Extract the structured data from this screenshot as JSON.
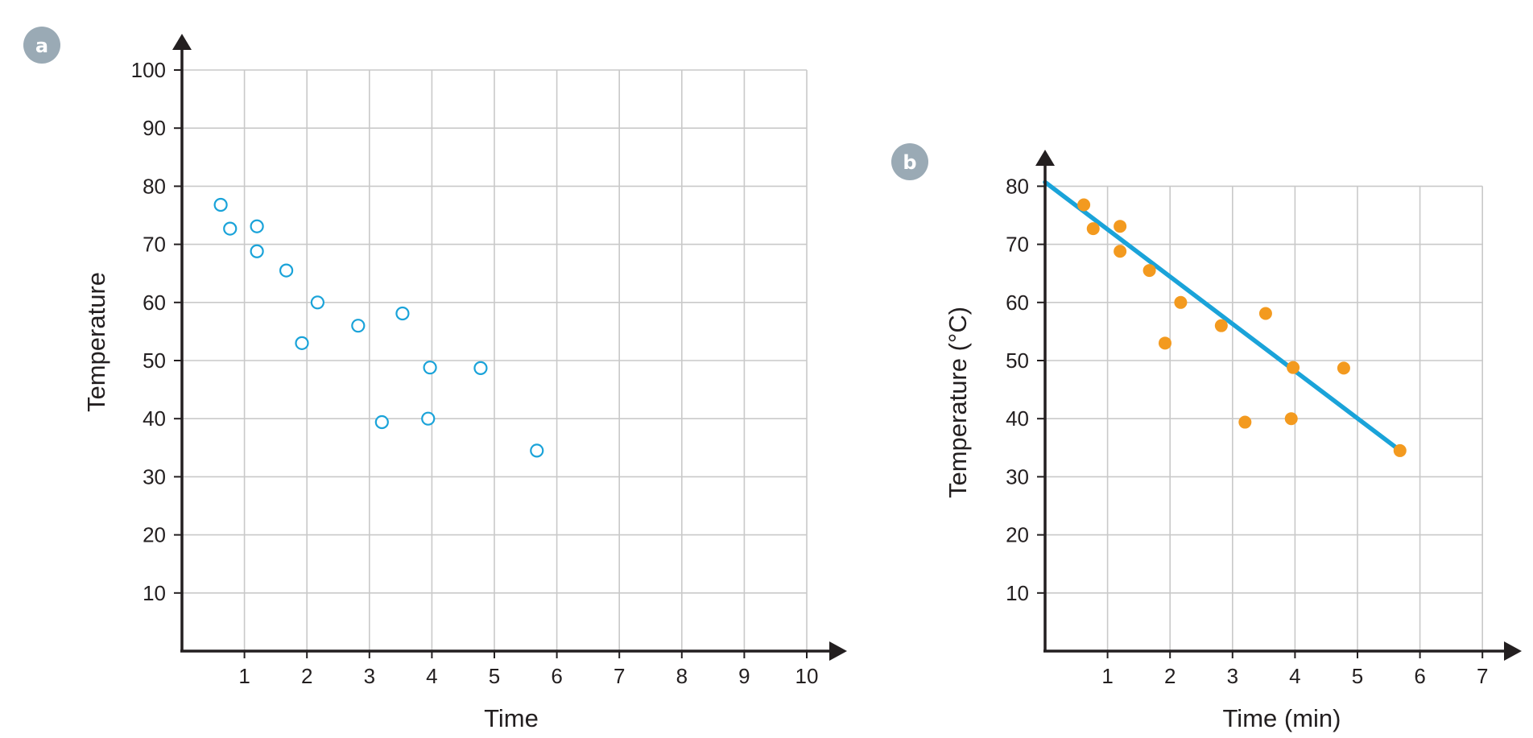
{
  "colors": {
    "axis": "#231f20",
    "grid": "#c9c9c9",
    "hollow_point": "#1aa3d9",
    "filled_point": "#f39a1f",
    "fit_line": "#1aa3d9",
    "badge": "#9aaab5"
  },
  "chart_data": [
    {
      "type": "scatter",
      "panel_label": "a",
      "xlabel": "Time",
      "ylabel": "Temperature",
      "xlim": [
        0,
        10
      ],
      "ylim": [
        0,
        100
      ],
      "xticks": [
        "1",
        "2",
        "3",
        "4",
        "5",
        "6",
        "7",
        "8",
        "9",
        "10"
      ],
      "yticks": [
        "10",
        "20",
        "30",
        "40",
        "50",
        "60",
        "70",
        "80",
        "90",
        "100"
      ],
      "grid": true,
      "marker": "hollow",
      "points": [
        {
          "x": 0.62,
          "y": 76.8
        },
        {
          "x": 0.77,
          "y": 72.7
        },
        {
          "x": 1.2,
          "y": 73.1
        },
        {
          "x": 1.2,
          "y": 68.8
        },
        {
          "x": 1.67,
          "y": 65.5
        },
        {
          "x": 2.17,
          "y": 60.0
        },
        {
          "x": 1.92,
          "y": 53.0
        },
        {
          "x": 2.82,
          "y": 56.0
        },
        {
          "x": 3.53,
          "y": 58.1
        },
        {
          "x": 3.97,
          "y": 48.8
        },
        {
          "x": 4.78,
          "y": 48.7
        },
        {
          "x": 3.2,
          "y": 39.4
        },
        {
          "x": 3.94,
          "y": 40.0
        },
        {
          "x": 5.68,
          "y": 34.5
        }
      ]
    },
    {
      "type": "scatter",
      "panel_label": "b",
      "xlabel": "Time (min)",
      "ylabel": "Temperature (°C)",
      "xlim": [
        0,
        7
      ],
      "ylim": [
        0,
        80
      ],
      "xticks": [
        "1",
        "2",
        "3",
        "4",
        "5",
        "6",
        "7"
      ],
      "yticks": [
        "10",
        "20",
        "30",
        "40",
        "50",
        "60",
        "70",
        "80"
      ],
      "grid": true,
      "marker": "filled",
      "points": [
        {
          "x": 0.62,
          "y": 76.8
        },
        {
          "x": 0.77,
          "y": 72.7
        },
        {
          "x": 1.2,
          "y": 73.1
        },
        {
          "x": 1.2,
          "y": 68.8
        },
        {
          "x": 1.67,
          "y": 65.5
        },
        {
          "x": 2.17,
          "y": 60.0
        },
        {
          "x": 1.92,
          "y": 53.0
        },
        {
          "x": 2.82,
          "y": 56.0
        },
        {
          "x": 3.53,
          "y": 58.1
        },
        {
          "x": 3.97,
          "y": 48.8
        },
        {
          "x": 4.78,
          "y": 48.7
        },
        {
          "x": 3.2,
          "y": 39.4
        },
        {
          "x": 3.94,
          "y": 40.0
        },
        {
          "x": 5.68,
          "y": 34.5
        }
      ],
      "fit_line": {
        "x0": 0,
        "y0": 80.7,
        "x1": 5.72,
        "y1": 34.2
      }
    }
  ]
}
